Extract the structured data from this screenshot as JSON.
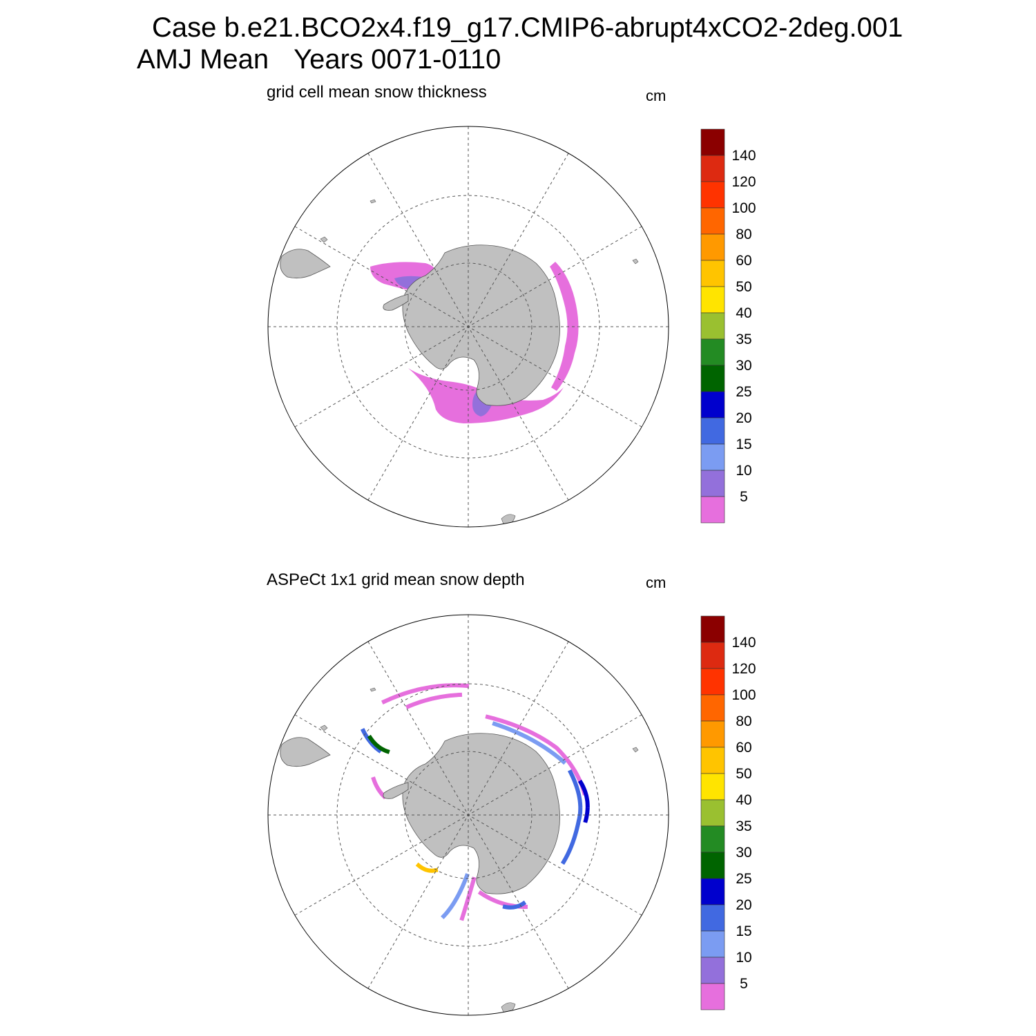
{
  "title": {
    "case_line": "Case b.e21.BCO2x4.f19_g17.CMIP6-abrupt4xCO2-2deg.001",
    "season": "AMJ Mean",
    "years": "Years 0071-0110"
  },
  "colorbar": {
    "labels": [
      "140",
      "120",
      "100",
      "80",
      "60",
      "50",
      "40",
      "35",
      "30",
      "25",
      "20",
      "15",
      "10",
      "5"
    ],
    "colors": [
      "#8b0000",
      "#dd2a11",
      "#ff3300",
      "#ff6600",
      "#ff9900",
      "#ffc400",
      "#ffe400",
      "#9ac030",
      "#238b23",
      "#006400",
      "#0000cd",
      "#4169e1",
      "#7b9cf2",
      "#9370db",
      "#e66fdd"
    ]
  },
  "panels": [
    {
      "id": "model",
      "title": "grid cell mean snow thickness",
      "unit": "cm"
    },
    {
      "id": "obs",
      "title": "ASPeCt 1x1 grid mean snow depth",
      "unit": "cm"
    }
  ],
  "map": {
    "projection": "south polar stereographic",
    "land_color": "#c0c0c0",
    "grid": "dashed meridians every 30°, latitude circles"
  }
}
